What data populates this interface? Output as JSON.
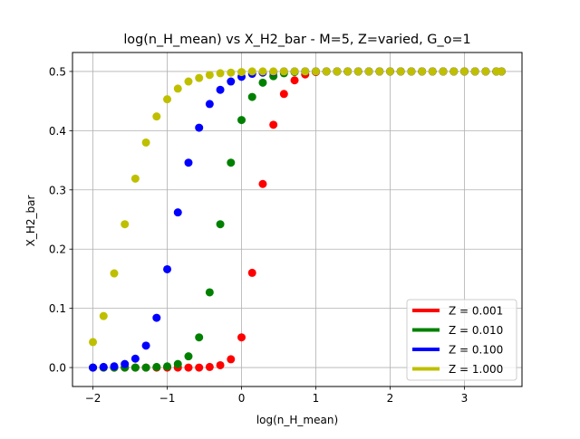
{
  "chart_data": {
    "type": "scatter",
    "title": "log(n_H_mean) vs X_H2_bar - M=5, Z=varied, G_o=1",
    "xlabel": "log(n_H_mean)",
    "ylabel": "X_H2_bar",
    "xlim": [
      -2.275,
      3.775
    ],
    "ylim": [
      -0.032,
      0.532
    ],
    "xticks": [
      -2,
      -1,
      0,
      1,
      2,
      3
    ],
    "yticks": [
      0.0,
      0.1,
      0.2,
      0.3,
      0.4,
      0.5
    ],
    "xtick_labels": [
      "−2",
      "−1",
      "0",
      "1",
      "2",
      "3"
    ],
    "ytick_labels": [
      "0.0",
      "0.1",
      "0.2",
      "0.3",
      "0.4",
      "0.5"
    ],
    "grid": true,
    "legend_position": "lower-right",
    "x": [
      -2.0,
      -1.857,
      -1.714,
      -1.571,
      -1.429,
      -1.286,
      -1.143,
      -1.0,
      -0.857,
      -0.714,
      -0.571,
      -0.429,
      -0.286,
      -0.143,
      0.0,
      0.143,
      0.286,
      0.429,
      0.571,
      0.714,
      0.857,
      1.0,
      1.143,
      1.286,
      1.429,
      1.571,
      1.714,
      1.857,
      2.0,
      2.143,
      2.286,
      2.429,
      2.571,
      2.714,
      2.857,
      3.0,
      3.143,
      3.286,
      3.429,
      3.5
    ],
    "series": [
      {
        "name": "Z = 0.001",
        "color": "#ff0000",
        "values": [
          0.0,
          0.0,
          0.0,
          0.0,
          0.0,
          0.0,
          0.0,
          0.0,
          0.0,
          0.0,
          0.0,
          0.001,
          0.004,
          0.014,
          0.051,
          0.16,
          0.31,
          0.41,
          0.462,
          0.485,
          0.495,
          0.499,
          0.5,
          0.5,
          0.5,
          0.5,
          0.5,
          0.5,
          0.5,
          0.5,
          0.5,
          0.5,
          0.5,
          0.5,
          0.5,
          0.5,
          0.5,
          0.5,
          0.5,
          0.5
        ]
      },
      {
        "name": "Z = 0.010",
        "color": "#008000",
        "values": [
          0.0,
          0.0,
          0.0,
          0.0,
          0.0,
          0.0,
          0.001,
          0.002,
          0.006,
          0.019,
          0.051,
          0.127,
          0.242,
          0.346,
          0.418,
          0.457,
          0.481,
          0.492,
          0.497,
          0.499,
          0.5,
          0.5,
          0.5,
          0.5,
          0.5,
          0.5,
          0.5,
          0.5,
          0.5,
          0.5,
          0.5,
          0.5,
          0.5,
          0.5,
          0.5,
          0.5,
          0.5,
          0.5,
          0.5,
          0.5
        ]
      },
      {
        "name": "Z = 0.100",
        "color": "#0000ff",
        "values": [
          0.0,
          0.001,
          0.002,
          0.006,
          0.015,
          0.037,
          0.084,
          0.166,
          0.262,
          0.346,
          0.405,
          0.445,
          0.469,
          0.483,
          0.491,
          0.496,
          0.498,
          0.499,
          0.5,
          0.5,
          0.5,
          0.5,
          0.5,
          0.5,
          0.5,
          0.5,
          0.5,
          0.5,
          0.5,
          0.5,
          0.5,
          0.5,
          0.5,
          0.5,
          0.5,
          0.5,
          0.5,
          0.5,
          0.5,
          0.5
        ]
      },
      {
        "name": "Z = 1.000",
        "color": "#bfbf00",
        "values": [
          0.043,
          0.087,
          0.159,
          0.242,
          0.319,
          0.38,
          0.424,
          0.453,
          0.471,
          0.483,
          0.489,
          0.494,
          0.497,
          0.498,
          0.499,
          0.5,
          0.5,
          0.5,
          0.5,
          0.5,
          0.5,
          0.5,
          0.5,
          0.5,
          0.5,
          0.5,
          0.5,
          0.5,
          0.5,
          0.5,
          0.5,
          0.5,
          0.5,
          0.5,
          0.5,
          0.5,
          0.5,
          0.5,
          0.5,
          0.5
        ]
      }
    ]
  }
}
